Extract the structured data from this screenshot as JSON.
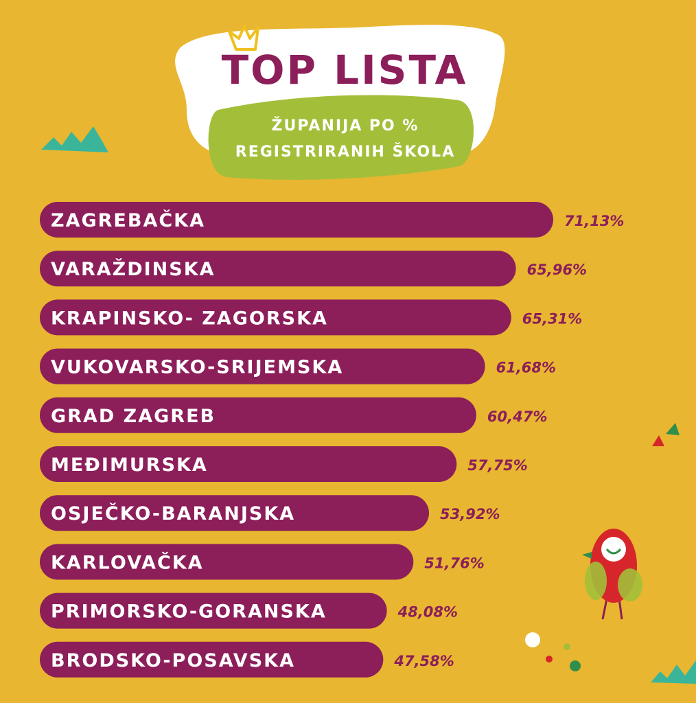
{
  "header": {
    "title": "TOP LISTA",
    "subtitle_line1": "ŽUPANIJA PO %",
    "subtitle_line2": "REGISTRIRANIH ŠKOLA"
  },
  "colors": {
    "background": "#e8b630",
    "bar": "#8c1e5a",
    "badge_green": "#a3bf3a",
    "cloud": "#ffffff",
    "value_text": "#8c1e5a"
  },
  "chart_data": {
    "type": "bar",
    "orientation": "horizontal",
    "title": "TOP LISTA",
    "subtitle": "ŽUPANIJA PO % REGISTRIRANIH ŠKOLA",
    "categories": [
      "ZAGREBAČKA",
      "VARAŽDINSKA",
      "KRAPINSKO- ZAGORSKA",
      "VUKOVARSKO-SRIJEMSKA",
      "GRAD ZAGREB",
      "MEĐIMURSKA",
      "OSJEČKO-BARANJSKA",
      "KARLOVAČKA",
      "PRIMORSKO-GORANSKA",
      "BRODSKO-POSAVSKA"
    ],
    "values": [
      71.13,
      65.96,
      65.31,
      61.68,
      60.47,
      57.75,
      53.92,
      51.76,
      48.08,
      47.58
    ],
    "value_labels": [
      "71,13%",
      "65,96%",
      "65,31%",
      "61,68%",
      "60,47%",
      "57,75%",
      "53,92%",
      "51,76%",
      "48,08%",
      "47,58%"
    ],
    "unit": "%",
    "grid": false,
    "legend": "none"
  }
}
